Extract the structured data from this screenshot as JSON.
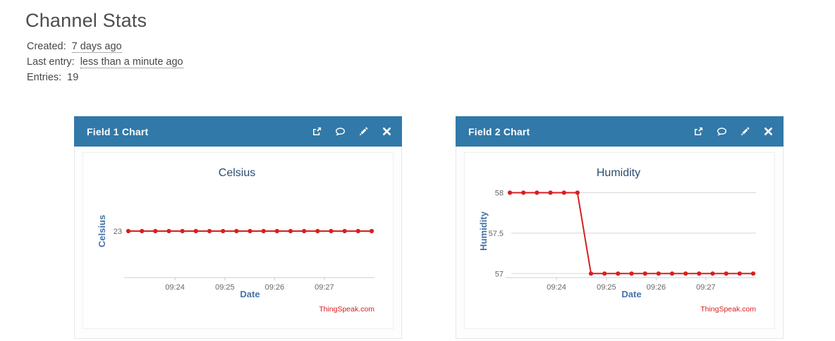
{
  "page": {
    "title": "Channel Stats"
  },
  "meta": {
    "rows": [
      {
        "label": "Created:",
        "value": "7 days ago",
        "underline": true
      },
      {
        "label": "Last entry:",
        "value": "less than a minute ago",
        "underline": true
      },
      {
        "label": "Entries:",
        "value": "19",
        "underline": false
      }
    ]
  },
  "panels": [
    {
      "title": "Field 1 Chart",
      "icons": [
        "external-link",
        "comment",
        "edit",
        "close"
      ]
    },
    {
      "title": "Field 2 Chart",
      "icons": [
        "external-link",
        "comment",
        "edit",
        "close"
      ]
    }
  ],
  "colors": {
    "header_bg": "#3179a9",
    "line": "#d62020",
    "credit": "#d62020",
    "axis_title": "#4572a7",
    "chart_title": "#2d4b6e",
    "tick_label": "#666666",
    "axis_line": "#c0d0e0",
    "grid_line": "#d8d8d8"
  },
  "chart_data": [
    {
      "type": "line",
      "title": "Celsius",
      "xlabel": "Date",
      "ylabel": "Celsius",
      "credit": "ThingSpeak.com",
      "grid": false,
      "ylim": [
        22.43,
        23.57
      ],
      "y_ticks": [
        {
          "value": 23,
          "label": "23"
        }
      ],
      "x_ticks": [
        {
          "label": "09:24",
          "pos": 0.195
        },
        {
          "label": "09:25",
          "pos": 0.398
        },
        {
          "label": "09:26",
          "pos": 0.6
        },
        {
          "label": "09:27",
          "pos": 0.802
        }
      ],
      "values": [
        23,
        23,
        23,
        23,
        23,
        23,
        23,
        23,
        23,
        23,
        23,
        23,
        23,
        23,
        23,
        23,
        23,
        23,
        23
      ]
    },
    {
      "type": "line",
      "title": "Humidity",
      "xlabel": "Date",
      "ylabel": "Humidity",
      "credit": "ThingSpeak.com",
      "grid": true,
      "ylim": [
        56.95,
        58.1
      ],
      "y_ticks": [
        {
          "value": 57,
          "label": "57"
        },
        {
          "value": 57.5,
          "label": "57.5"
        },
        {
          "value": 58,
          "label": "58"
        }
      ],
      "x_ticks": [
        {
          "label": "09:24",
          "pos": 0.195
        },
        {
          "label": "09:25",
          "pos": 0.398
        },
        {
          "label": "09:26",
          "pos": 0.6
        },
        {
          "label": "09:27",
          "pos": 0.802
        }
      ],
      "values": [
        58,
        58,
        58,
        58,
        58,
        58,
        57,
        57,
        57,
        57,
        57,
        57,
        57,
        57,
        57,
        57,
        57,
        57,
        57
      ]
    }
  ]
}
